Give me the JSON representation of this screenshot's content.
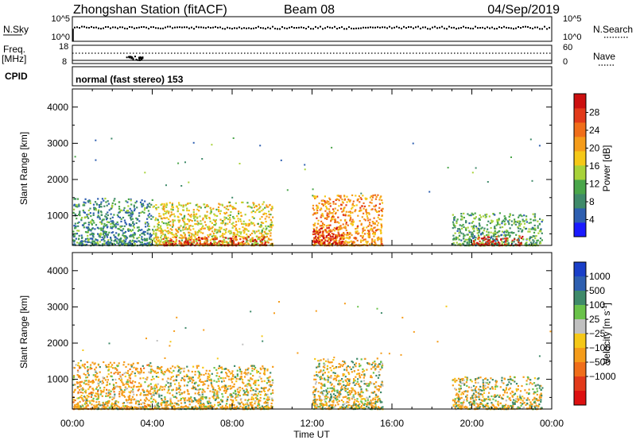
{
  "header": {
    "station": "Zhongshan Station (fitACF)",
    "beam": "Beam 08",
    "date": "04/Sep/2019"
  },
  "status_panels": {
    "nsky_label": "N.Sky",
    "nsky_top_tick": "10^5",
    "nsky_bottom_tick": "10^0",
    "nsearch_label": "N.Search",
    "nsearch_top_tick": "10^5",
    "nsearch_bottom_tick": "10^0",
    "freq_label_line1": "Freq.",
    "freq_label_line2": "[MHz]",
    "freq_top_tick": "18",
    "freq_bottom_tick": "8",
    "nave_label": "Nave",
    "nave_top_tick": "60",
    "nave_bottom_tick": "0",
    "cpid_label": "CPID",
    "cpid_text": "normal (fast stereo) 153"
  },
  "axes": {
    "ylabel": "Slant Range [km]",
    "xlabel": "Time UT",
    "yticks": [
      "1000",
      "2000",
      "3000",
      "4000"
    ],
    "xticks": [
      "00:00",
      "04:00",
      "08:00",
      "12:00",
      "16:00",
      "20:00",
      "00:00"
    ]
  },
  "power_colorbar": {
    "label": "Power [dB]",
    "ticks": [
      "4",
      "8",
      "12",
      "16",
      "20",
      "24",
      "28"
    ],
    "colors": [
      "#1a1aff",
      "#2e5fb0",
      "#3f8a6a",
      "#4aa64a",
      "#a8d23a",
      "#f5c818",
      "#f59c1a",
      "#f06e1a",
      "#e23a1a",
      "#cc1010"
    ]
  },
  "velocity_colorbar": {
    "label": "Velocity [m s",
    "label_sup": "-1",
    "label_end": "]",
    "ticks": [
      "1000",
      "500",
      "100",
      "25",
      "−25",
      "−100",
      "−500",
      "−1000"
    ],
    "colors": [
      "#1a3fc8",
      "#2e5fb0",
      "#3f8a6a",
      "#6ac24a",
      "#c0c0c0",
      "#f5c818",
      "#f59c1a",
      "#f06e1a",
      "#e23a1a",
      "#dd1010"
    ]
  },
  "chart_data": [
    {
      "type": "heatmap",
      "title": "Zhongshan Station (fitACF) Beam 08 04/Sep/2019",
      "quantity": "Power [dB]",
      "xlabel": "Time UT",
      "ylabel": "Slant Range [km]",
      "x_range": [
        "00:00",
        "24:00"
      ],
      "ylim": [
        180,
        4500
      ],
      "clim": [
        0,
        30
      ],
      "scatter_regions": [
        {
          "t_start": 0.0,
          "t_end": 4.0,
          "range_min": 200,
          "range_max": 1500,
          "power_db": 8
        },
        {
          "t_start": 4.0,
          "t_end": 10.0,
          "range_min": 200,
          "range_max": 1400,
          "power_db": 16
        },
        {
          "t_start": 4.5,
          "t_end": 9.8,
          "range_min": 200,
          "range_max": 450,
          "power_db": 26
        },
        {
          "t_start": 12.0,
          "t_end": 15.5,
          "range_min": 200,
          "range_max": 1600,
          "power_db": 20
        },
        {
          "t_start": 12.0,
          "t_end": 13.5,
          "range_min": 250,
          "range_max": 700,
          "power_db": 28
        },
        {
          "t_start": 19.0,
          "t_end": 23.5,
          "range_min": 200,
          "range_max": 1100,
          "power_db": 10
        },
        {
          "t_start": 20.0,
          "t_end": 22.5,
          "range_min": 200,
          "range_max": 450,
          "power_db": 28
        }
      ]
    },
    {
      "type": "heatmap",
      "quantity": "Velocity [m s-1]",
      "xlabel": "Time UT",
      "ylabel": "Slant Range [km]",
      "x_range": [
        "00:00",
        "24:00"
      ],
      "ylim": [
        180,
        4500
      ],
      "clim": [
        -1200,
        1200
      ],
      "scatter_regions": [
        {
          "t_start": 0.0,
          "t_end": 4.0,
          "range_min": 200,
          "range_max": 1500,
          "velocity": -200
        },
        {
          "t_start": 4.0,
          "t_end": 10.0,
          "range_min": 200,
          "range_max": 1400,
          "velocity": -150
        },
        {
          "t_start": 12.0,
          "t_end": 15.5,
          "range_min": 200,
          "range_max": 1600,
          "velocity": -100
        },
        {
          "t_start": 19.0,
          "t_end": 23.5,
          "range_min": 200,
          "range_max": 1100,
          "velocity": -80
        }
      ]
    }
  ]
}
